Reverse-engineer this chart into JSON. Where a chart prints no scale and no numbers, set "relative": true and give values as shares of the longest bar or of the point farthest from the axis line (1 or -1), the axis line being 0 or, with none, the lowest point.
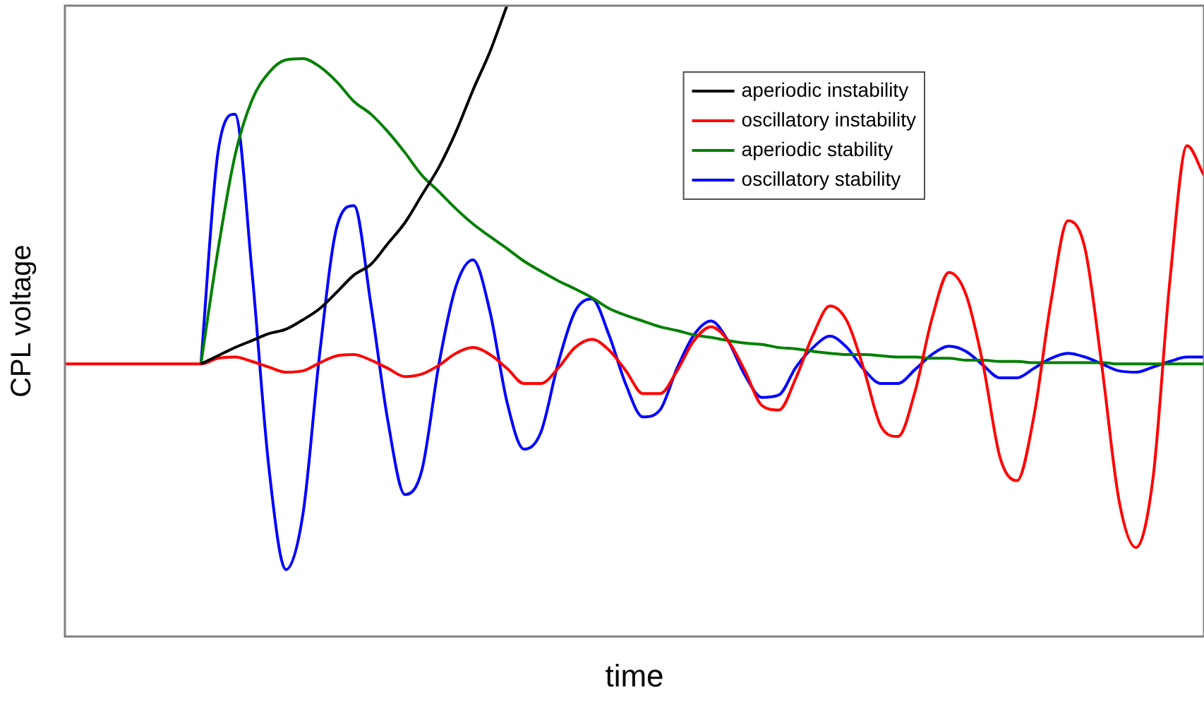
{
  "chart_data": {
    "type": "line",
    "relative": true,
    "xlabel": "time",
    "ylabel": "CPL voltage",
    "legend": "top right",
    "grid": false,
    "marker": "none",
    "line_style": "solid",
    "categories": [
      null,
      null,
      null,
      null,
      null,
      null,
      null,
      null,
      null,
      null,
      null,
      null,
      null,
      null,
      null,
      null,
      null,
      null,
      null,
      null,
      null,
      null,
      null,
      null,
      null,
      null,
      null,
      null,
      null,
      null,
      null,
      null,
      null,
      null,
      null,
      null,
      null,
      null,
      null,
      null,
      null,
      null,
      null,
      null,
      null,
      null,
      null,
      null,
      null,
      null,
      null,
      null,
      null,
      null,
      null,
      null,
      null,
      null,
      null,
      null,
      null,
      null,
      null,
      null,
      null,
      null,
      null,
      null
    ],
    "series": [
      {
        "name": "aperiodic instability",
        "color": "#000000",
        "values": [
          null,
          null,
          null,
          null,
          null,
          null,
          null,
          null,
          0.432,
          0.445,
          0.458,
          0.469,
          0.48,
          0.487,
          0.502,
          0.52,
          0.546,
          0.573,
          0.59,
          0.623,
          0.656,
          0.7,
          0.744,
          0.8,
          0.866,
          0.927,
          1,
          null,
          null,
          null,
          null,
          null,
          null,
          null,
          null,
          null,
          null,
          null,
          null,
          null,
          null,
          null,
          null,
          null,
          null,
          null,
          null,
          null,
          null,
          null,
          null,
          null,
          null,
          null,
          null,
          null,
          null,
          null,
          null,
          null,
          null,
          null,
          null,
          null,
          null,
          null,
          null,
          null
        ]
      },
      {
        "name": "oscillatory instability",
        "color": "#ff0000",
        "values": [
          0.432,
          0.432,
          0.432,
          0.432,
          0.432,
          0.432,
          0.432,
          0.432,
          0.432,
          0.441,
          0.443,
          0.436,
          0.427,
          0.419,
          0.421,
          0.434,
          0.445,
          0.447,
          0.438,
          0.425,
          0.412,
          0.416,
          0.43,
          0.449,
          0.458,
          0.447,
          0.425,
          0.401,
          0.401,
          0.425,
          0.458,
          0.471,
          0.454,
          0.421,
          0.385,
          0.385,
          0.421,
          0.469,
          0.491,
          0.469,
          0.421,
          0.366,
          0.359,
          0.41,
          0.478,
          0.524,
          0.5,
          0.423,
          0.333,
          0.317,
          0.388,
          0.504,
          0.577,
          0.542,
          0.432,
          0.284,
          0.247,
          0.35,
          0.531,
          0.659,
          0.615,
          0.427,
          0.216,
          0.141,
          0.251,
          0.566,
          0.778,
          0.731
        ]
      },
      {
        "name": "aperiodic stability",
        "color": "#008000",
        "values": [
          null,
          null,
          null,
          null,
          null,
          null,
          null,
          null,
          0.432,
          0.612,
          0.762,
          0.85,
          0.894,
          0.914,
          0.916,
          0.903,
          0.879,
          0.848,
          0.828,
          0.8,
          0.767,
          0.731,
          0.705,
          0.678,
          0.654,
          0.634,
          0.615,
          0.595,
          0.579,
          0.564,
          0.551,
          0.537,
          0.52,
          0.509,
          0.5,
          0.491,
          0.485,
          0.478,
          0.474,
          0.469,
          0.465,
          0.463,
          0.458,
          0.456,
          0.452,
          0.449,
          0.447,
          0.447,
          0.445,
          0.443,
          0.443,
          0.441,
          0.441,
          0.438,
          0.438,
          0.436,
          0.436,
          0.434,
          0.434,
          0.434,
          0.434,
          0.434,
          0.432,
          0.432,
          0.432,
          0.432,
          0.432,
          0.432
        ]
      },
      {
        "name": "oscillatory stability",
        "color": "#0000ff",
        "values": [
          null,
          null,
          null,
          null,
          null,
          null,
          null,
          null,
          0.432,
          0.767,
          0.828,
          0.579,
          0.267,
          0.106,
          0.194,
          0.452,
          0.65,
          0.683,
          0.526,
          0.341,
          0.225,
          0.264,
          0.432,
          0.555,
          0.597,
          0.515,
          0.372,
          0.297,
          0.324,
          0.432,
          0.515,
          0.535,
          0.478,
          0.399,
          0.348,
          0.359,
          0.425,
          0.478,
          0.5,
          0.469,
          0.414,
          0.379,
          0.383,
          0.427,
          0.458,
          0.476,
          0.458,
          0.423,
          0.401,
          0.401,
          0.423,
          0.447,
          0.46,
          0.452,
          0.43,
          0.41,
          0.41,
          0.425,
          0.441,
          0.449,
          0.443,
          0.432,
          0.421,
          0.419,
          0.427,
          0.436,
          0.443,
          0.443
        ]
      }
    ]
  }
}
